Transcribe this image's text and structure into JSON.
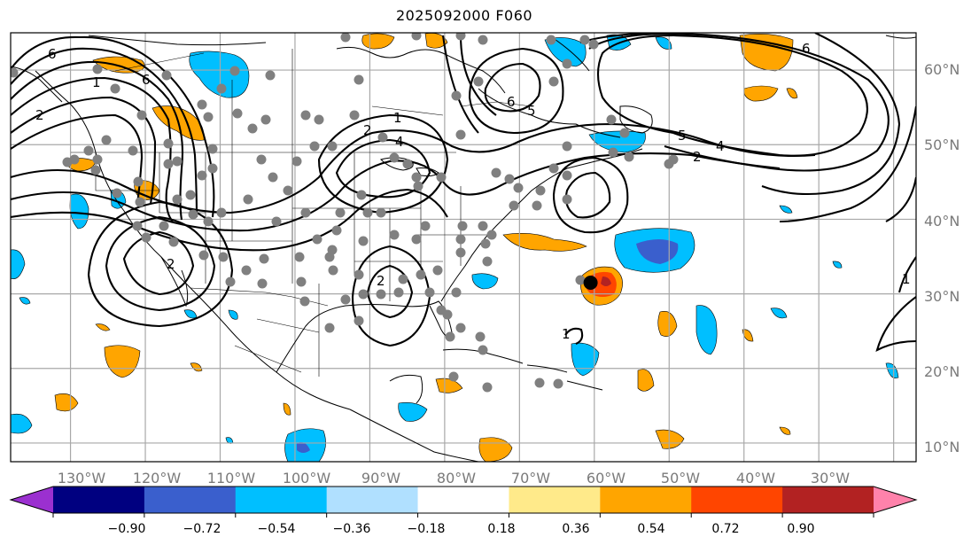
{
  "title": "2025092000 F060",
  "map": {
    "projection": "PlateCarree",
    "lon_range": [
      -138,
      -17
    ],
    "lat_range": [
      7.5,
      65
    ],
    "lon_labels": [
      "130°W",
      "120°W",
      "110°W",
      "100°W",
      "90°W",
      "80°W",
      "70°W",
      "60°W",
      "50°W",
      "40°W",
      "30°W"
    ],
    "lat_labels": [
      "10°N",
      "20°N",
      "30°N",
      "40°N",
      "50°N",
      "60°N"
    ],
    "contour_labels": [
      "6",
      "6",
      "2",
      "2",
      "1",
      "6",
      "5",
      "5",
      "4",
      "2",
      "6",
      "4",
      "2",
      "2",
      "1",
      "1",
      "1"
    ],
    "storm_marker": {
      "lon": -60.5,
      "lat": 31.5,
      "color": "#000000"
    },
    "station_dot_color": "#808080"
  },
  "colorbar": {
    "colors": [
      "#9b30d0",
      "#000080",
      "#3a5fcd",
      "#00bfff",
      "#b0e0ff",
      "#ffffff",
      "#ffea8a",
      "#ffa500",
      "#ff4500",
      "#b22222",
      "#ff82ab"
    ],
    "tick_labels": [
      "−0.90",
      "−0.72",
      "−0.54",
      "−0.36",
      "−0.18",
      "0.18",
      "0.36",
      "0.54",
      "0.72",
      "0.90"
    ]
  }
}
